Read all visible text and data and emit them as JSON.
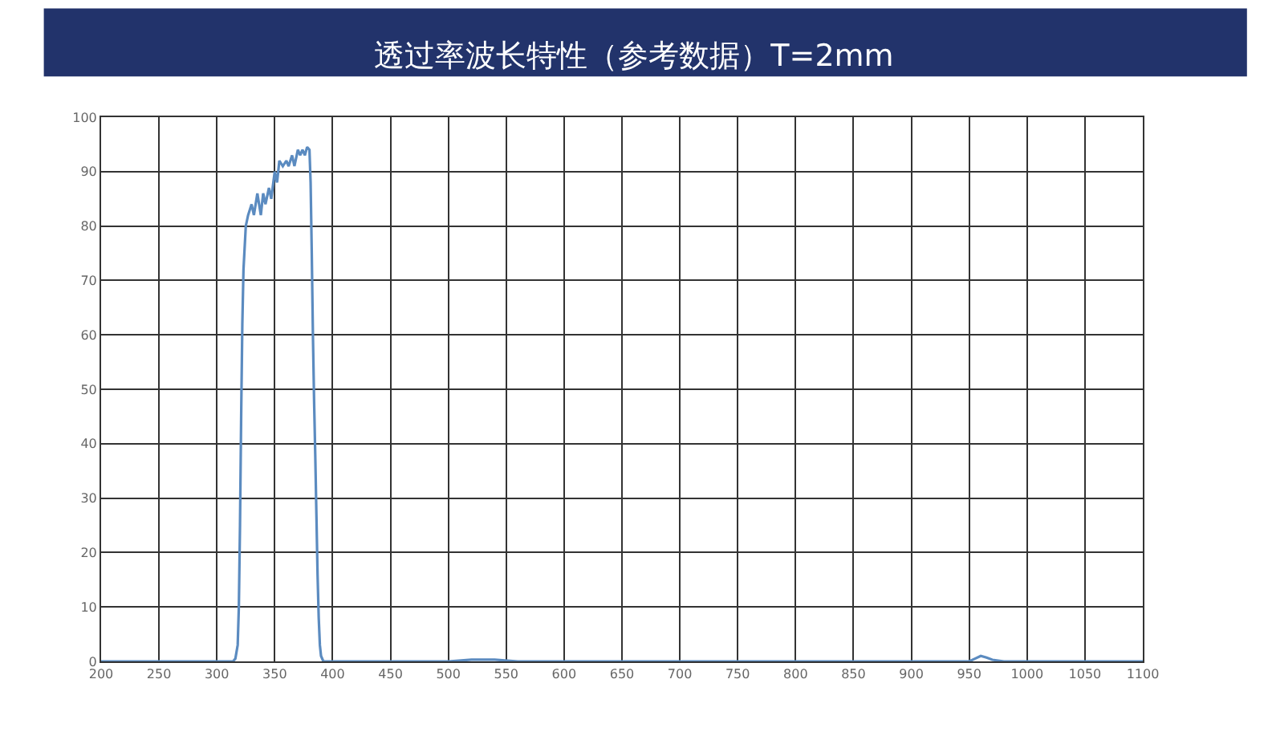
{
  "chart_data": {
    "type": "line",
    "title": "透过率波长特性（参考数据）T=2mm",
    "series": [
      {
        "color": "#5b8bc0",
        "x": [
          200,
          300,
          314,
          316,
          318,
          319,
          320,
          321,
          322,
          323,
          325,
          327,
          330,
          332,
          335,
          338,
          340,
          342,
          345,
          347,
          350,
          352,
          354,
          357,
          360,
          362,
          365,
          367,
          370,
          372,
          374,
          376,
          378,
          380,
          381,
          382,
          383,
          384,
          385,
          386,
          387,
          388,
          389,
          390,
          392,
          395,
          400,
          500,
          520,
          540,
          560,
          900,
          950,
          955,
          960,
          965,
          970,
          980,
          1000,
          1100
        ],
        "values": [
          0,
          0,
          0,
          0.5,
          3,
          10,
          25,
          45,
          62,
          72,
          80,
          82,
          84,
          82,
          86,
          82,
          86,
          84,
          87,
          85,
          90,
          88,
          92,
          91,
          92,
          91,
          93,
          91,
          94,
          93,
          94,
          93,
          94.5,
          94,
          88,
          75,
          60,
          48,
          38,
          27,
          16,
          8,
          3,
          1,
          0,
          0,
          0,
          0,
          0.3,
          0.3,
          0,
          0,
          0,
          0.5,
          1,
          0.7,
          0.3,
          0,
          0,
          0
        ]
      }
    ],
    "xlim": [
      200,
      1100
    ],
    "ylim": [
      0,
      100
    ],
    "xticks": [
      200,
      250,
      300,
      350,
      400,
      450,
      500,
      550,
      600,
      650,
      700,
      750,
      800,
      850,
      900,
      950,
      1000,
      1050,
      1100
    ],
    "yticks": [
      0,
      10,
      20,
      30,
      40,
      50,
      60,
      70,
      80,
      90,
      100
    ],
    "grid": true,
    "marker": "none",
    "line_style": "solid"
  }
}
